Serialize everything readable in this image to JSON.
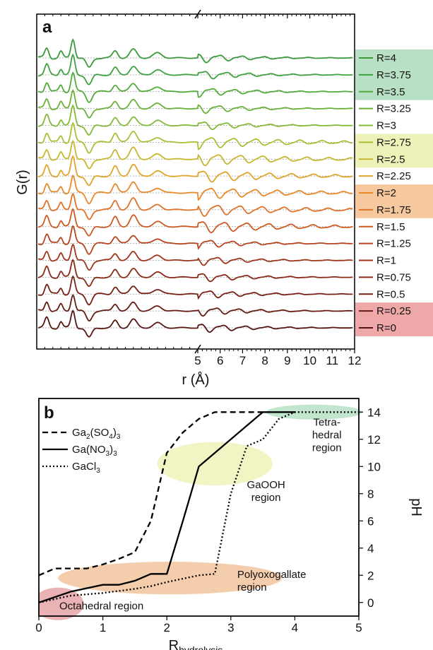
{
  "chart_data": [
    {
      "panel": "a",
      "type": "line",
      "xlabel": "r (Å)",
      "ylabel": "G(r)",
      "xlim_left_segment": [
        1,
        5
      ],
      "xlim_right_segment": [
        5,
        12
      ],
      "x_ticks": [
        "5",
        "6",
        "7",
        "8",
        "9",
        "10",
        "11",
        "12"
      ],
      "broken_axis_at": "5",
      "series": [
        {
          "name": "R=4",
          "color": "#3a9a3a",
          "highlight": "#b7e0c4"
        },
        {
          "name": "R=3.75",
          "color": "#3fa23f",
          "highlight": "#b7e0c4"
        },
        {
          "name": "R=3.5",
          "color": "#52ab3a",
          "highlight": "#b7e0c4"
        },
        {
          "name": "R=3.25",
          "color": "#6ab13a",
          "highlight": ""
        },
        {
          "name": "R=3",
          "color": "#86b938",
          "highlight": ""
        },
        {
          "name": "R=2.75",
          "color": "#a9c036",
          "highlight": "#eef2b8"
        },
        {
          "name": "R=2.5",
          "color": "#c7b82f",
          "highlight": "#eef2b8"
        },
        {
          "name": "R=2.25",
          "color": "#e0a52a",
          "highlight": ""
        },
        {
          "name": "R=2",
          "color": "#e8892a",
          "highlight": "#f6c89e"
        },
        {
          "name": "R=1.75",
          "color": "#e07328",
          "highlight": "#f6c89e"
        },
        {
          "name": "R=1.5",
          "color": "#cf5a24",
          "highlight": ""
        },
        {
          "name": "R=1.25",
          "color": "#b84520",
          "highlight": ""
        },
        {
          "name": "R=1",
          "color": "#9f351c",
          "highlight": ""
        },
        {
          "name": "R=0.75",
          "color": "#8a2a18",
          "highlight": ""
        },
        {
          "name": "R=0.5",
          "color": "#772216",
          "highlight": ""
        },
        {
          "name": "R=0.25",
          "color": "#661c14",
          "highlight": "#efa8a8"
        },
        {
          "name": "R=0",
          "color": "#561612",
          "highlight": "#efa8a8"
        }
      ]
    },
    {
      "panel": "b",
      "type": "line",
      "xlabel_main": "R",
      "xlabel_sub": "hydrolysis",
      "ylabel": "pH",
      "xlim": [
        0,
        5
      ],
      "ylim": [
        -1,
        15
      ],
      "x_ticks": [
        "0",
        "1",
        "2",
        "3",
        "4",
        "5"
      ],
      "y_ticks": [
        "0",
        "2",
        "4",
        "6",
        "8",
        "10",
        "12",
        "14"
      ],
      "series": [
        {
          "name_parts": [
            "Ga",
            "2",
            "(SO",
            "4",
            ")",
            "3"
          ],
          "style": "dashed",
          "points": [
            [
              0,
              2
            ],
            [
              0.25,
              2.5
            ],
            [
              0.75,
              2.5
            ],
            [
              1,
              2.8
            ],
            [
              1.25,
              3.2
            ],
            [
              1.5,
              3.7
            ],
            [
              1.75,
              6
            ],
            [
              2,
              11
            ],
            [
              2.25,
              12.5
            ],
            [
              2.5,
              13.5
            ],
            [
              2.75,
              14
            ],
            [
              3,
              14
            ],
            [
              3.5,
              14
            ]
          ]
        },
        {
          "name_parts": [
            "Ga(NO",
            "3",
            ")",
            "3"
          ],
          "style": "solid",
          "points": [
            [
              0,
              0
            ],
            [
              0.5,
              0.8
            ],
            [
              1,
              1.3
            ],
            [
              1.25,
              1.3
            ],
            [
              1.5,
              1.6
            ],
            [
              1.75,
              2.1
            ],
            [
              2,
              2.1
            ],
            [
              2.25,
              6
            ],
            [
              2.5,
              10
            ],
            [
              2.75,
              11
            ],
            [
              3,
              12
            ],
            [
              3.25,
              13
            ],
            [
              3.5,
              14
            ],
            [
              4,
              14
            ]
          ]
        },
        {
          "name_parts": [
            "GaCl",
            "3"
          ],
          "style": "dotted",
          "points": [
            [
              0,
              0
            ],
            [
              0.5,
              0.5
            ],
            [
              1,
              0.7
            ],
            [
              1.5,
              1
            ],
            [
              1.75,
              1.2
            ],
            [
              2,
              1.5
            ],
            [
              2.5,
              2
            ],
            [
              2.75,
              2.1
            ],
            [
              3,
              8
            ],
            [
              3.25,
              11.5
            ],
            [
              3.5,
              12
            ],
            [
              3.75,
              13.5
            ],
            [
              4,
              14
            ],
            [
              4.5,
              14
            ],
            [
              5,
              14
            ]
          ]
        }
      ],
      "regions": [
        {
          "label_lines": [
            "Octahedral region"
          ],
          "color": "#e7a5a8",
          "cx": 0.3,
          "cy": -0.1,
          "rx": 0.4,
          "ry": 1.2
        },
        {
          "label_lines": [
            "Polyoxogallate",
            "region"
          ],
          "color": "#f2c59e",
          "cx": 2.05,
          "cy": 1.8,
          "rx": 1.75,
          "ry": 1.2
        },
        {
          "label_lines": [
            "GaOOH",
            "region"
          ],
          "color": "#eef2b8",
          "cx": 2.75,
          "cy": 10.2,
          "rx": 0.9,
          "ry": 1.6
        },
        {
          "label_lines": [
            "Tetra-",
            "hedral",
            "region"
          ],
          "color": "#b7e0c4",
          "cx": 4.3,
          "cy": 14,
          "rx": 0.75,
          "ry": 0.55
        }
      ]
    }
  ],
  "panel_labels": {
    "a": "a",
    "b": "b"
  }
}
